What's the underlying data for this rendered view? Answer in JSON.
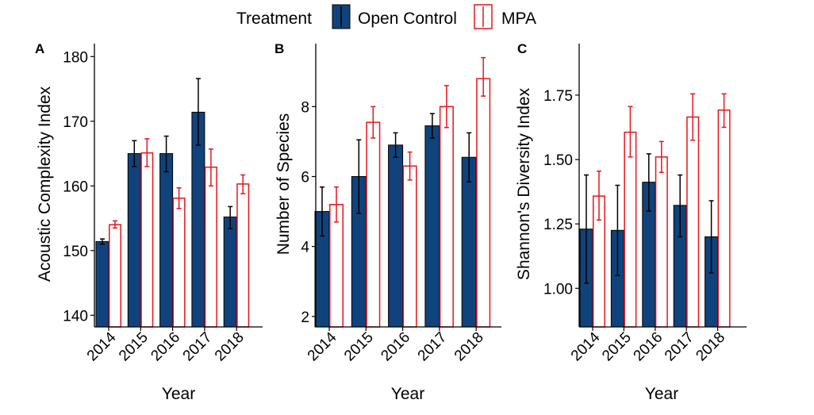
{
  "legend": {
    "title": "Treatment",
    "items": [
      {
        "label": "Open Control",
        "fill": "#10437c",
        "stroke": "#000000"
      },
      {
        "label": "MPA",
        "fill": "#ffffff",
        "stroke": "#e8161b"
      }
    ]
  },
  "colors": {
    "open_fill": "#10437c",
    "open_err": "#000000",
    "mpa_fill": "#ffffff",
    "mpa_stroke": "#e8161b",
    "axis": "#000000"
  },
  "chart_data": [
    {
      "type": "bar",
      "panel": "A",
      "xlabel": "Year",
      "ylabel": "Acoustic Complexity Index",
      "categories": [
        "2014",
        "2015",
        "2016",
        "2017",
        "2018"
      ],
      "ylim": [
        138.2,
        182
      ],
      "yticks": [
        140,
        150,
        160,
        170,
        180
      ],
      "ytick_labels": [
        "140",
        "150",
        "160",
        "170",
        "180"
      ],
      "series": [
        {
          "name": "Open Control",
          "values": [
            151.4,
            165.0,
            165.0,
            171.4,
            155.2
          ],
          "err_low": [
            151.0,
            163.0,
            162.2,
            166.3,
            153.4
          ],
          "err_high": [
            151.8,
            167.0,
            167.7,
            176.6,
            156.8
          ]
        },
        {
          "name": "MPA",
          "values": [
            154.0,
            165.1,
            158.1,
            162.9,
            160.3
          ],
          "err_low": [
            153.5,
            163.0,
            156.5,
            160.0,
            158.8
          ],
          "err_high": [
            154.6,
            167.3,
            159.7,
            165.7,
            161.7
          ]
        }
      ]
    },
    {
      "type": "bar",
      "panel": "B",
      "xlabel": "Year",
      "ylabel": "Number of Species",
      "categories": [
        "2014",
        "2015",
        "2016",
        "2017",
        "2018"
      ],
      "ylim": [
        1.7,
        9.8
      ],
      "yticks": [
        2,
        4,
        6,
        8
      ],
      "ytick_labels": [
        "2",
        "4",
        "6",
        "8"
      ],
      "series": [
        {
          "name": "Open Control",
          "values": [
            5.0,
            6.0,
            6.9,
            7.45,
            6.55
          ],
          "err_low": [
            4.3,
            4.95,
            6.55,
            7.1,
            5.85
          ],
          "err_high": [
            5.7,
            7.05,
            7.25,
            7.8,
            7.25
          ]
        },
        {
          "name": "MPA",
          "values": [
            5.2,
            7.55,
            6.3,
            8.0,
            8.8
          ],
          "err_low": [
            4.7,
            7.1,
            5.9,
            7.4,
            8.3
          ],
          "err_high": [
            5.7,
            8.0,
            6.7,
            8.6,
            9.4
          ]
        }
      ]
    },
    {
      "type": "bar",
      "panel": "C",
      "xlabel": "Year",
      "ylabel": "Shannon's Diversity Index",
      "categories": [
        "2014",
        "2015",
        "2016",
        "2017",
        "2018"
      ],
      "ylim": [
        0.85,
        1.95
      ],
      "yticks": [
        1.0,
        1.25,
        1.5,
        1.75
      ],
      "ytick_labels": [
        "1.00",
        "1.25",
        "1.50",
        "1.75"
      ],
      "series": [
        {
          "name": "Open Control",
          "values": [
            1.23,
            1.225,
            1.412,
            1.322,
            1.2
          ],
          "err_low": [
            1.02,
            1.05,
            1.3,
            1.2,
            1.06
          ],
          "err_high": [
            1.44,
            1.4,
            1.522,
            1.44,
            1.34
          ]
        },
        {
          "name": "MPA",
          "values": [
            1.358,
            1.606,
            1.51,
            1.665,
            1.692
          ],
          "err_low": [
            1.265,
            1.51,
            1.45,
            1.575,
            1.625
          ],
          "err_high": [
            1.455,
            1.706,
            1.57,
            1.755,
            1.755
          ]
        }
      ]
    }
  ]
}
